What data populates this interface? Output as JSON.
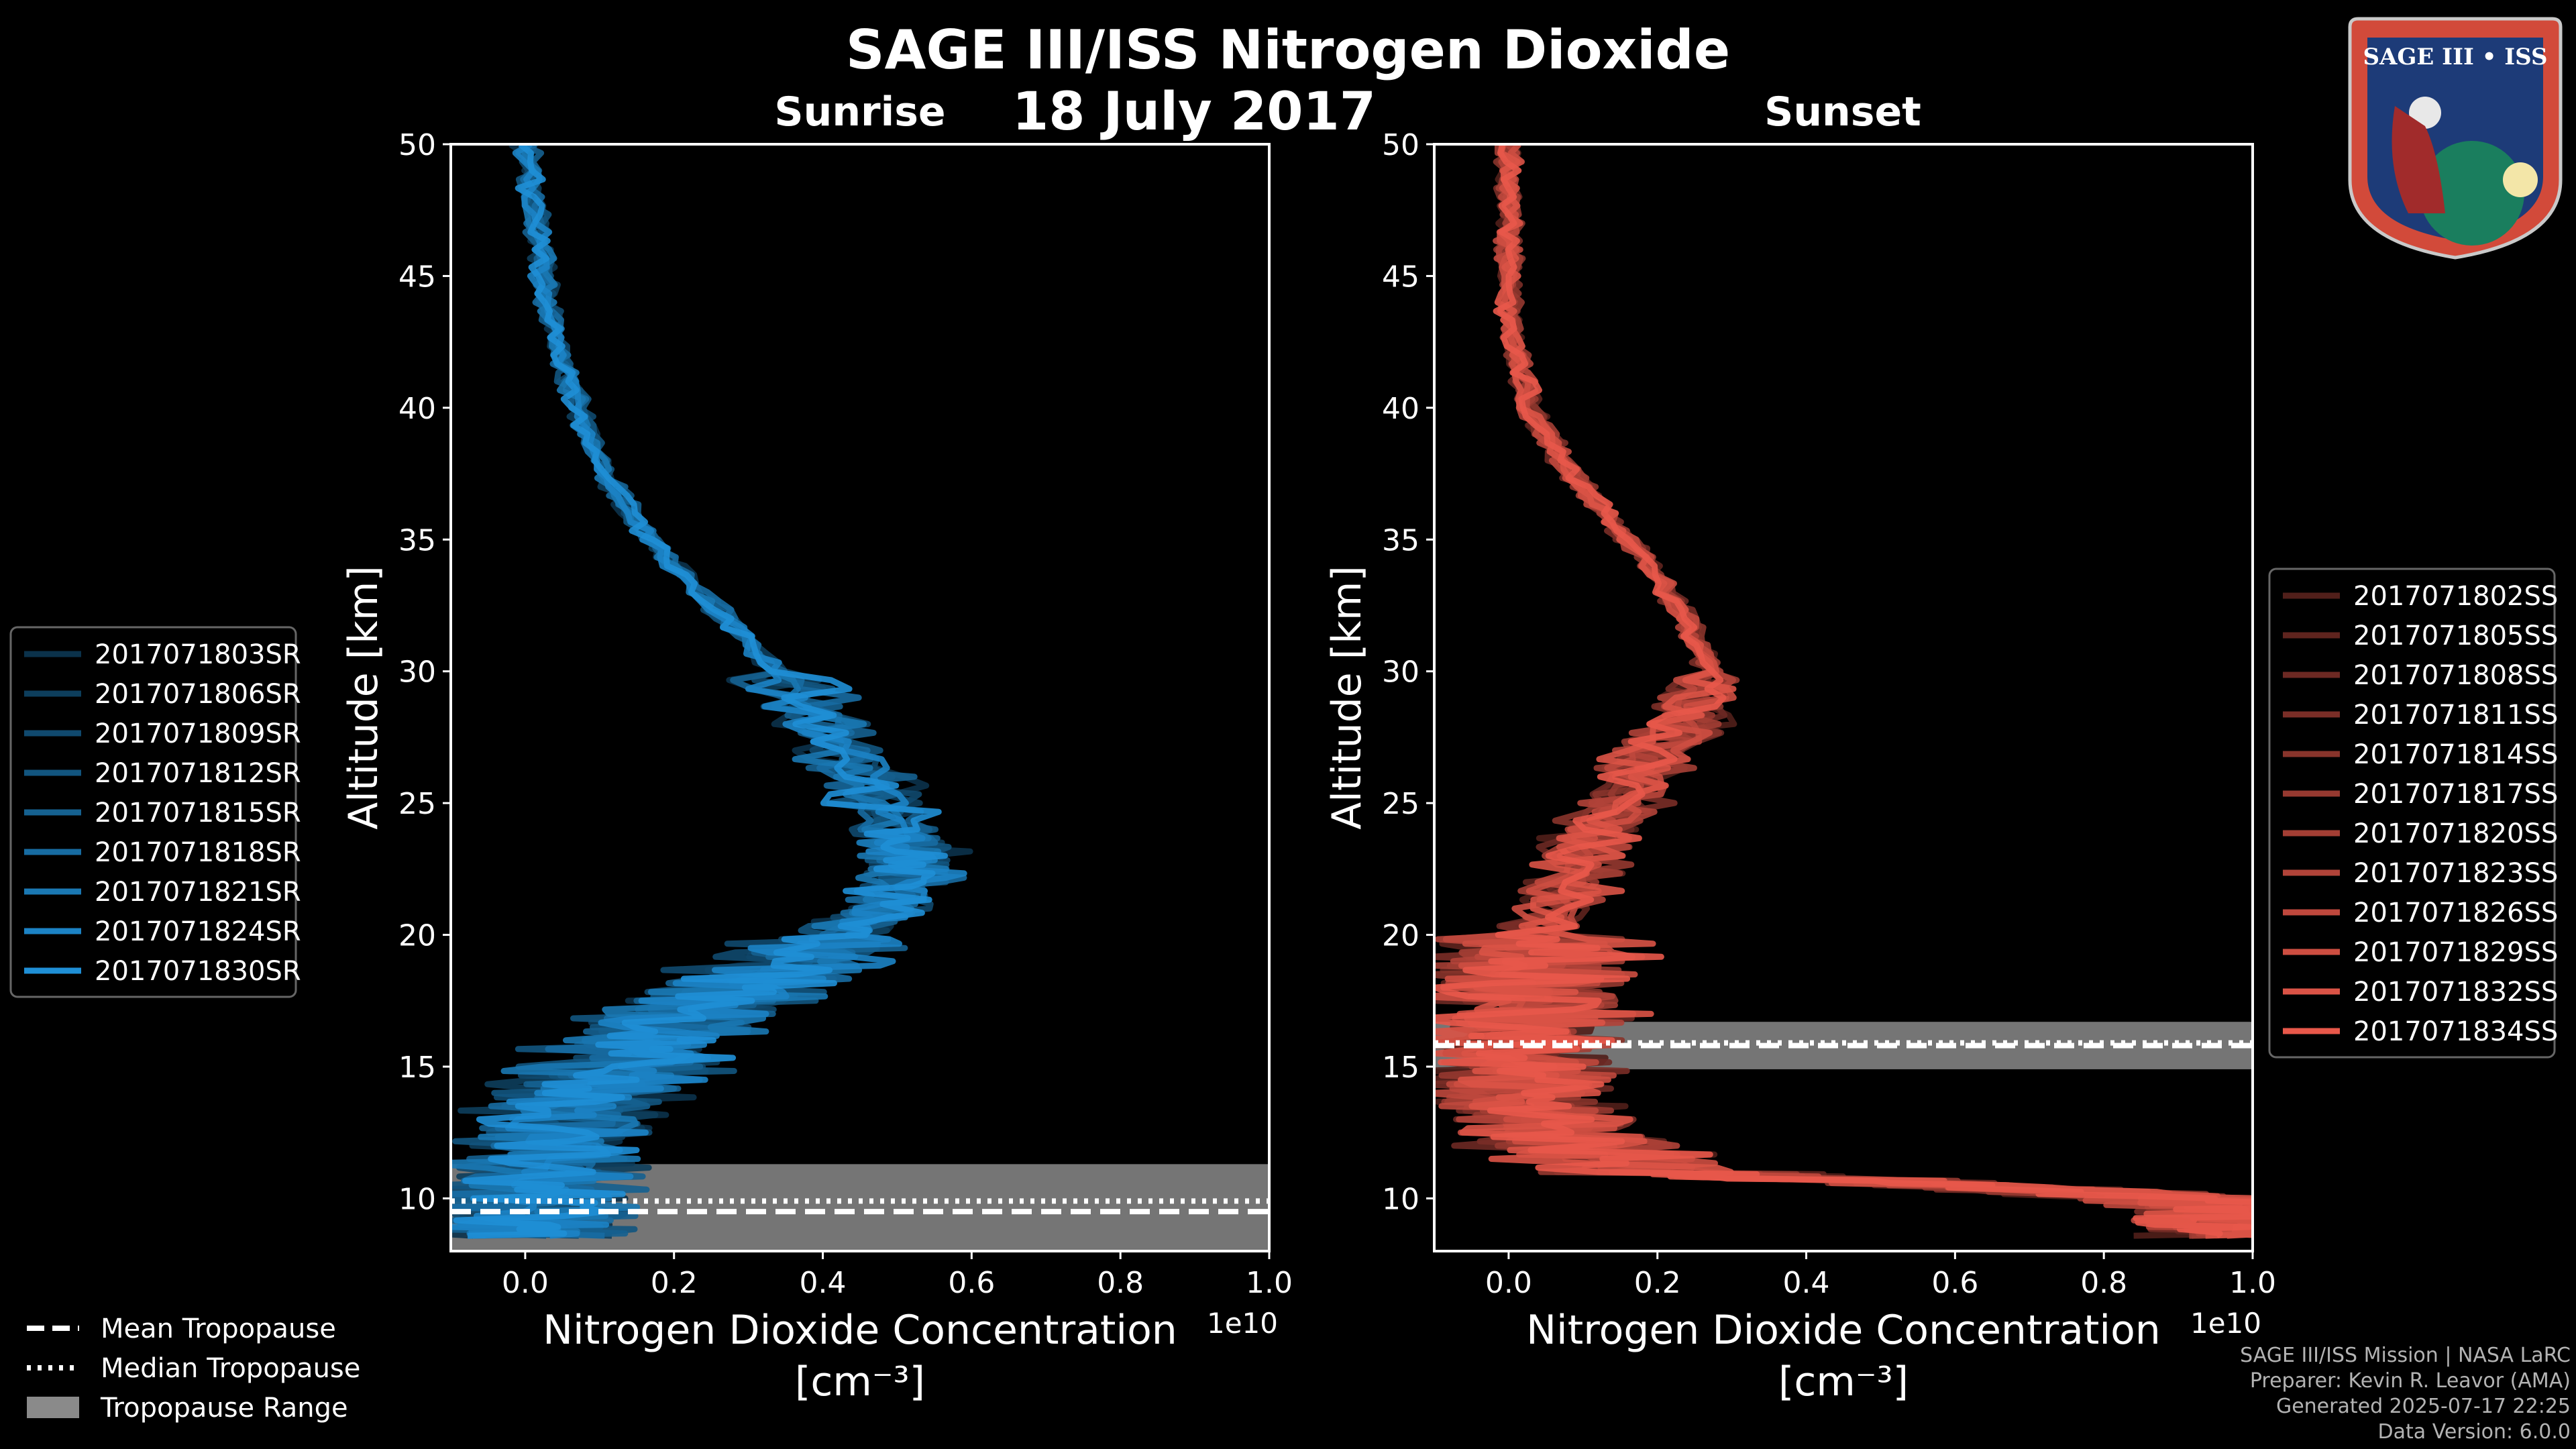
{
  "header": {
    "title": "SAGE III/ISS Nitrogen Dioxide",
    "date": "18 July 2017"
  },
  "badge": {
    "text": "SAGE III • ISS"
  },
  "footer": {
    "line1": "SAGE III/ISS Mission | NASA LaRC",
    "line2": "Preparer: Kevin R. Leavor (AMA)",
    "line3": "Generated 2025-07-17 22:25",
    "line4": "Data Version: 6.0.0"
  },
  "colors": {
    "sunrise": "#1f8fd6",
    "sunset": "#e8584a",
    "tropopause_band": "#8a8a8a"
  },
  "chart_data": [
    {
      "type": "line",
      "title": "Sunrise",
      "xlabel": "Nitrogen Dioxide Concentration",
      "xlabel_units": "[cm⁻³]",
      "x_multiplier": "1e10",
      "ylabel": "Altitude [km]",
      "xlim": [
        -0.1,
        1.0
      ],
      "ylim": [
        8,
        50
      ],
      "xticks": [
        "0.0",
        "0.2",
        "0.4",
        "0.6",
        "0.8",
        "1.0"
      ],
      "yticks": [
        "10",
        "15",
        "20",
        "25",
        "30",
        "35",
        "40",
        "45",
        "50"
      ],
      "mean_tropopause_km": 9.5,
      "median_tropopause_km": 9.9,
      "tropopause_range_km": [
        8,
        11.3
      ],
      "mean_profile": {
        "altitude": [
          50,
          48,
          46,
          44,
          42,
          40,
          38,
          36,
          34,
          32,
          30,
          28,
          26,
          24,
          23,
          22,
          21,
          20,
          19,
          18,
          17,
          16,
          15,
          14,
          13,
          12,
          11,
          10,
          9,
          8.5
        ],
        "value": [
          0.0,
          0.01,
          0.02,
          0.03,
          0.05,
          0.07,
          0.1,
          0.14,
          0.2,
          0.27,
          0.34,
          0.4,
          0.45,
          0.5,
          0.52,
          0.52,
          0.48,
          0.42,
          0.35,
          0.28,
          0.22,
          0.17,
          0.12,
          0.08,
          0.05,
          0.03,
          0.02,
          0.01,
          0.0,
          0.0
        ]
      },
      "series": [
        {
          "name": "2017071803SR"
        },
        {
          "name": "2017071806SR"
        },
        {
          "name": "2017071809SR"
        },
        {
          "name": "2017071812SR"
        },
        {
          "name": "2017071815SR"
        },
        {
          "name": "2017071818SR"
        },
        {
          "name": "2017071821SR"
        },
        {
          "name": "2017071824SR"
        },
        {
          "name": "2017071830SR"
        }
      ]
    },
    {
      "type": "line",
      "title": "Sunset",
      "xlabel": "Nitrogen Dioxide Concentration",
      "xlabel_units": "[cm⁻³]",
      "x_multiplier": "1e10",
      "ylabel": "Altitude [km]",
      "xlim": [
        -0.1,
        1.0
      ],
      "ylim": [
        8,
        50
      ],
      "xticks": [
        "0.0",
        "0.2",
        "0.4",
        "0.6",
        "0.8",
        "1.0"
      ],
      "yticks": [
        "10",
        "15",
        "20",
        "25",
        "30",
        "35",
        "40",
        "45",
        "50"
      ],
      "mean_tropopause_km": 15.8,
      "median_tropopause_km": 15.9,
      "tropopause_range_km": [
        14.9,
        16.7
      ],
      "mean_profile": {
        "altitude": [
          50,
          48,
          46,
          44,
          42,
          40,
          38,
          36,
          34,
          32,
          30,
          28,
          26,
          24,
          22,
          20,
          19,
          18,
          17,
          16,
          15,
          14,
          13,
          12,
          11,
          10.5,
          10,
          9.5,
          9,
          8.5
        ],
        "value": [
          0.0,
          0.0,
          0.0,
          0.0,
          0.01,
          0.03,
          0.07,
          0.13,
          0.19,
          0.24,
          0.27,
          0.24,
          0.17,
          0.12,
          0.08,
          0.05,
          0.04,
          0.03,
          0.03,
          0.02,
          0.02,
          0.03,
          0.05,
          0.08,
          0.2,
          0.6,
          0.9,
          1.0,
          1.0,
          1.0
        ]
      },
      "series": [
        {
          "name": "2017071802SS"
        },
        {
          "name": "2017071805SS"
        },
        {
          "name": "2017071808SS"
        },
        {
          "name": "2017071811SS"
        },
        {
          "name": "2017071814SS"
        },
        {
          "name": "2017071817SS"
        },
        {
          "name": "2017071820SS"
        },
        {
          "name": "2017071823SS"
        },
        {
          "name": "2017071826SS"
        },
        {
          "name": "2017071829SS"
        },
        {
          "name": "2017071832SS"
        },
        {
          "name": "2017071834SS"
        }
      ]
    }
  ],
  "tropopause_legend": {
    "mean": "Mean Tropopause",
    "median": "Median Tropopause",
    "range": "Tropopause Range"
  }
}
